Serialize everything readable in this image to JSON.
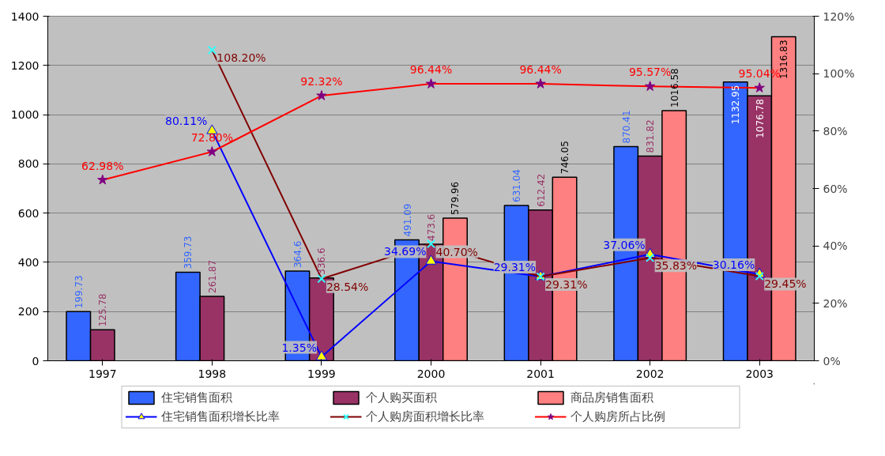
{
  "chart_data": {
    "type": "bar",
    "categories": [
      "1997",
      "1998",
      "1999",
      "2000",
      "2001",
      "2002",
      "2003"
    ],
    "series": [
      {
        "name": "住宅销售面积",
        "color": "#3366ff",
        "values": [
          199.73,
          359.73,
          364.6,
          491.09,
          631.04,
          870.41,
          1132.95
        ],
        "value_labels": [
          "199.73",
          "359.73",
          "364.6",
          "491.09",
          "631.04",
          "870.41",
          "1132.95"
        ]
      },
      {
        "name": "个人购买面积",
        "color": "#993366",
        "values": [
          125.78,
          261.87,
          336.6,
          473.6,
          612.42,
          831.82,
          1076.78
        ],
        "value_labels": [
          "125.78",
          "261.87",
          "336.6",
          "473.6",
          "612.42",
          "831.82",
          "1076.78"
        ]
      },
      {
        "name": "商品房销售面积",
        "color": "#ff8080",
        "values": [
          null,
          null,
          null,
          579.96,
          746.05,
          1016.58,
          1316.83
        ],
        "value_labels": [
          null,
          null,
          null,
          "579.96",
          "746.05",
          "1016.58",
          "1316.83"
        ]
      },
      {
        "name": "住宅销售面积增长比率",
        "type": "line",
        "axis": "y2",
        "color": "#0000ff",
        "marker": "triangle",
        "colors": [
          "#ffff00",
          "#ffff00",
          "#ffff00",
          "#ffff00",
          "#ffff00",
          "#ffff00",
          "#ffff00"
        ],
        "values": [
          null,
          80.11,
          1.35,
          34.69,
          29.31,
          37.06,
          30.16
        ],
        "value_labels": [
          null,
          "80.11%",
          "1.35%",
          "34.69%",
          "29.31%",
          "37.06%",
          "30.16%"
        ]
      },
      {
        "name": "个人购房面积增长比率",
        "type": "line",
        "axis": "y2",
        "color": "#800000",
        "marker": "cross",
        "colors": [
          "#33ffff",
          "#33ffff",
          "#33ffff",
          "#33ffff",
          "#33ffff",
          "#33ffff",
          "#33ffff"
        ],
        "values": [
          null,
          108.2,
          28.54,
          40.7,
          29.31,
          35.83,
          29.45
        ],
        "value_labels": [
          null,
          "108.20%",
          "28.54%",
          "40.70%",
          "29.31%",
          "35.83%",
          "29.45%"
        ]
      },
      {
        "name": "个人购房所占比例",
        "type": "line",
        "axis": "y2",
        "color": "#ff0000",
        "marker": "star",
        "colors": [
          "#800080",
          "#800080",
          "#800080",
          "#800080",
          "#800080",
          "#800080",
          "#800080"
        ],
        "values": [
          62.98,
          72.8,
          92.32,
          96.44,
          96.44,
          95.57,
          95.04
        ],
        "value_labels": [
          "62.98%",
          "72.80%",
          "92.32%",
          "96.44%",
          "96.44%",
          "95.57%",
          "95.04%"
        ]
      }
    ],
    "ylim": [
      0,
      1400
    ],
    "yticks": [
      0,
      200,
      400,
      600,
      800,
      1000,
      1200,
      1400
    ],
    "y2lim": [
      0,
      120
    ],
    "y2ticks": [
      {
        "value": 0,
        "label": "0%"
      },
      {
        "value": 20,
        "label": "20%"
      },
      {
        "value": 40,
        "label": "40%"
      },
      {
        "value": 60,
        "label": "60%"
      },
      {
        "value": 80,
        "label": "80%"
      },
      {
        "value": 100,
        "label": "100%"
      },
      {
        "value": 120,
        "label": "120%"
      }
    ],
    "grid": "y",
    "legend": "bottom"
  }
}
